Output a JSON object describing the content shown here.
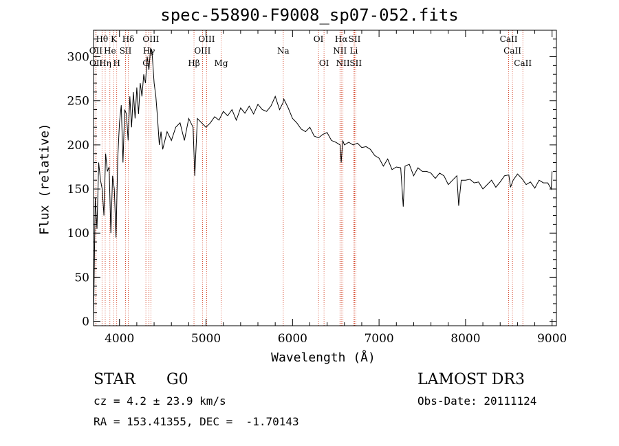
{
  "chart_data": {
    "type": "line",
    "title": "spec-55890-F9008_sp07-052.fits",
    "xlabel": "Wavelength (Å)",
    "ylabel": "Flux (relative)",
    "xlim": [
      3700,
      9050
    ],
    "ylim": [
      -5,
      330
    ],
    "xticks": [
      4000,
      5000,
      6000,
      7000,
      8000,
      9000
    ],
    "yticks": [
      0,
      50,
      100,
      150,
      200,
      250,
      300
    ],
    "grid": false,
    "series": [
      {
        "name": "flux",
        "x": [
          3700,
          3720,
          3740,
          3760,
          3780,
          3800,
          3820,
          3840,
          3860,
          3880,
          3900,
          3920,
          3940,
          3960,
          3980,
          4000,
          4020,
          4040,
          4060,
          4080,
          4100,
          4120,
          4140,
          4160,
          4180,
          4200,
          4220,
          4240,
          4260,
          4280,
          4300,
          4320,
          4340,
          4360,
          4380,
          4400,
          4420,
          4440,
          4460,
          4480,
          4500,
          4550,
          4600,
          4650,
          4700,
          4750,
          4800,
          4850,
          4870,
          4900,
          4950,
          5000,
          5050,
          5100,
          5150,
          5200,
          5250,
          5300,
          5350,
          5400,
          5450,
          5500,
          5550,
          5600,
          5650,
          5700,
          5750,
          5800,
          5850,
          5890,
          5900,
          5950,
          6000,
          6050,
          6100,
          6150,
          6200,
          6250,
          6300,
          6350,
          6400,
          6450,
          6500,
          6550,
          6563,
          6580,
          6600,
          6650,
          6700,
          6750,
          6800,
          6850,
          6900,
          6950,
          7000,
          7050,
          7100,
          7150,
          7200,
          7250,
          7280,
          7300,
          7350,
          7400,
          7450,
          7500,
          7550,
          7600,
          7650,
          7700,
          7750,
          7800,
          7850,
          7900,
          7920,
          7950,
          8000,
          8050,
          8100,
          8150,
          8200,
          8250,
          8300,
          8350,
          8400,
          8450,
          8500,
          8520,
          8550,
          8600,
          8650,
          8700,
          8750,
          8800,
          8850,
          8900,
          8950,
          8990,
          9000
        ],
        "values": [
          0,
          140,
          105,
          180,
          160,
          150,
          120,
          190,
          170,
          175,
          100,
          165,
          150,
          95,
          185,
          225,
          245,
          180,
          240,
          235,
          205,
          255,
          220,
          260,
          230,
          265,
          235,
          270,
          255,
          280,
          270,
          300,
          285,
          310,
          300,
          270,
          255,
          230,
          200,
          215,
          195,
          215,
          205,
          220,
          225,
          205,
          230,
          220,
          165,
          230,
          225,
          220,
          225,
          232,
          228,
          238,
          233,
          240,
          228,
          242,
          236,
          244,
          235,
          246,
          240,
          238,
          244,
          255,
          240,
          248,
          252,
          242,
          230,
          225,
          218,
          215,
          220,
          210,
          208,
          212,
          214,
          205,
          203,
          200,
          180,
          205,
          200,
          203,
          200,
          202,
          197,
          198,
          195,
          188,
          185,
          176,
          184,
          172,
          175,
          174,
          130,
          176,
          178,
          165,
          174,
          170,
          170,
          168,
          162,
          168,
          165,
          155,
          160,
          165,
          131,
          160,
          160,
          161,
          157,
          158,
          150,
          155,
          160,
          152,
          158,
          165,
          166,
          152,
          160,
          167,
          162,
          155,
          158,
          151,
          160,
          157,
          157,
          150,
          170
        ]
      }
    ],
    "lines_row1": [
      {
        "label": "Hθ",
        "x": 3798
      },
      {
        "label": "K",
        "x": 3934
      },
      {
        "label": "Hδ",
        "x": 4102
      },
      {
        "label": "OIII",
        "x": 4363
      },
      {
        "label": "OIII",
        "x": 5007
      },
      {
        "label": "OI",
        "x": 6300
      },
      {
        "label": "Hα",
        "x": 6563
      },
      {
        "label": "SII",
        "x": 6717
      },
      {
        "label": "CaII",
        "x": 8498
      }
    ],
    "lines_row2": [
      {
        "label": "OII",
        "x": 3727
      },
      {
        "label": "He",
        "x": 3889
      },
      {
        "label": "SII",
        "x": 4070
      },
      {
        "label": "Hγ",
        "x": 4341
      },
      {
        "label": "OIII",
        "x": 4959
      },
      {
        "label": "Na",
        "x": 5893
      },
      {
        "label": "NII",
        "x": 6548
      },
      {
        "label": "Li",
        "x": 6708
      },
      {
        "label": "CaII",
        "x": 8542
      }
    ],
    "lines_row3": [
      {
        "label": "OII",
        "x": 3729
      },
      {
        "label": "Hη",
        "x": 3835
      },
      {
        "label": "H",
        "x": 3968
      },
      {
        "label": "G",
        "x": 4305
      },
      {
        "label": "Hβ",
        "x": 4861
      },
      {
        "label": "Mg",
        "x": 5175
      },
      {
        "label": "OI",
        "x": 6364
      },
      {
        "label": "NII",
        "x": 6583
      },
      {
        "label": "SII",
        "x": 6731
      },
      {
        "label": "CaII",
        "x": 8662
      }
    ],
    "line_color": "#cc2200"
  },
  "info": {
    "class": "STAR",
    "subclass": "G0",
    "survey": "LAMOST DR3",
    "cz": "cz = 4.2 ± 23.9 km/s",
    "obs_date": "Obs-Date: 20111124",
    "coords": "RA = 153.41355, DEC =  -1.70143"
  }
}
